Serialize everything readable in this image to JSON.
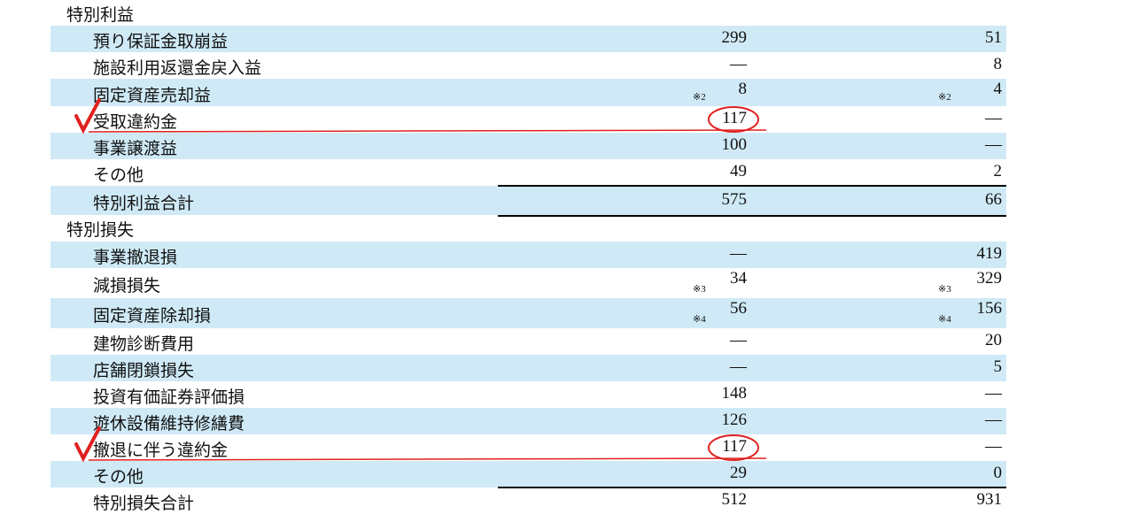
{
  "sections": [
    {
      "title": "特別利益",
      "rows": [
        {
          "label": "預り保証金取崩益",
          "current": "299",
          "prior": "51"
        },
        {
          "label": "施設利用返還金戻入益",
          "current": "—",
          "prior": "8"
        },
        {
          "label": "固定資産売却益",
          "current": "8",
          "prior": "4",
          "current_note": "※2",
          "prior_note": "※2"
        },
        {
          "label": "受取違約金",
          "current": "117",
          "prior": "—"
        },
        {
          "label": "事業譲渡益",
          "current": "100",
          "prior": "—"
        },
        {
          "label": "その他",
          "current": "49",
          "prior": "2"
        },
        {
          "label": "特別利益合計",
          "current": "575",
          "prior": "66"
        }
      ]
    },
    {
      "title": "特別損失",
      "rows": [
        {
          "label": "事業撤退損",
          "current": "—",
          "prior": "419"
        },
        {
          "label": "減損損失",
          "current": "34",
          "prior": "329",
          "current_note": "※3",
          "prior_note": "※3"
        },
        {
          "label": "固定資産除却損",
          "current": "56",
          "prior": "156",
          "current_note": "※4",
          "prior_note": "※4"
        },
        {
          "label": "建物診断費用",
          "current": "—",
          "prior": "20"
        },
        {
          "label": "店舗閉鎖損失",
          "current": "—",
          "prior": "5"
        },
        {
          "label": "投資有価証券評価損",
          "current": "148",
          "prior": "—"
        },
        {
          "label": "遊休設備維持修繕費",
          "current": "126",
          "prior": "—"
        },
        {
          "label": "撤退に伴う違約金",
          "current": "117",
          "prior": "—"
        },
        {
          "label": "その他",
          "current": "29",
          "prior": "0"
        },
        {
          "label": "特別損失合計",
          "current": "512",
          "prior": "931"
        }
      ]
    }
  ]
}
